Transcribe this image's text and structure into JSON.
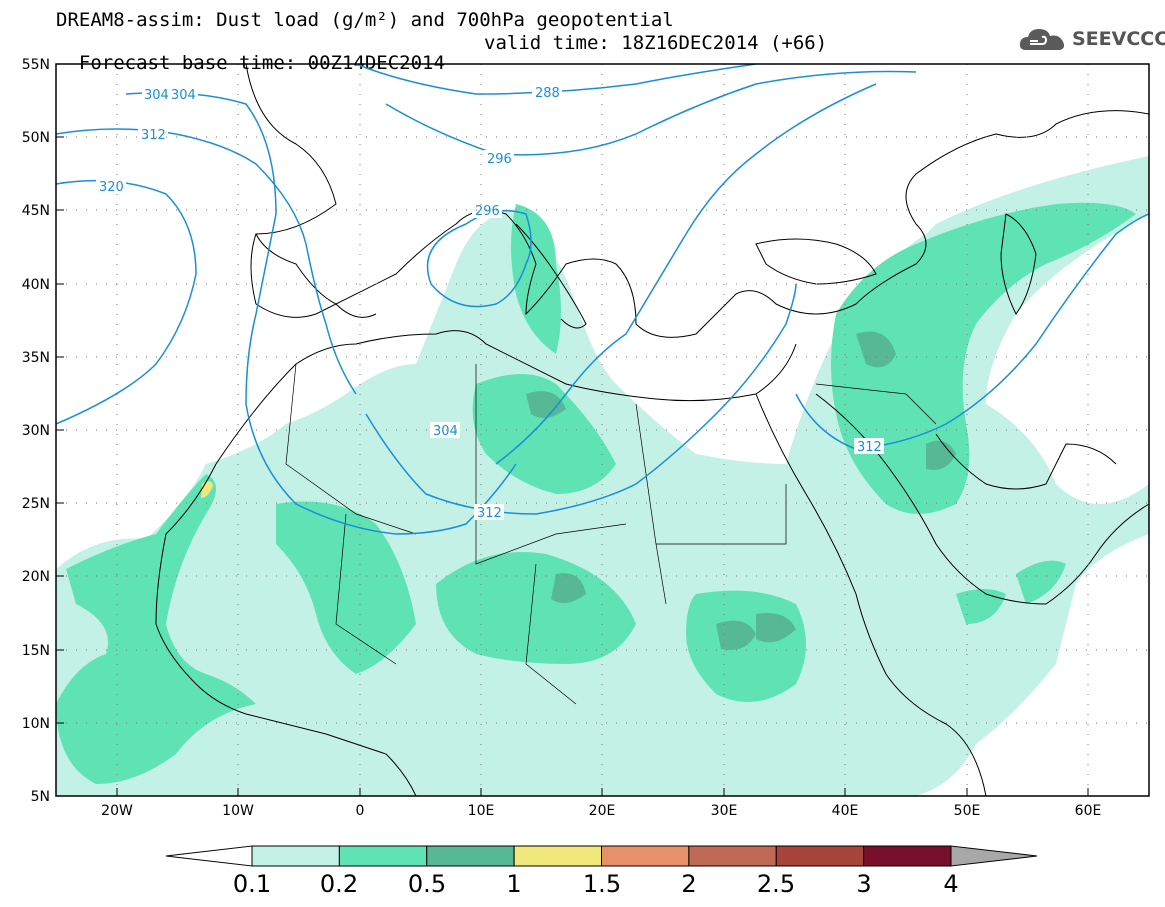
{
  "title": {
    "line1": "DREAM8-assim: Dust load (g/m²) and 700hPa geopotential",
    "base_time": "Forecast base time: 00Z14DEC2014",
    "valid_time": "valid time: 18Z16DEC2014 (+66)"
  },
  "logo": {
    "text": "SEEVCCC",
    "icon": "cloud-icon"
  },
  "axes": {
    "lat_labels": [
      "55N",
      "50N",
      "45N",
      "40N",
      "35N",
      "30N",
      "25N",
      "20N",
      "15N",
      "10N",
      "5N"
    ],
    "lon_labels": [
      "20W",
      "10W",
      "0",
      "10E",
      "20E",
      "30E",
      "40E",
      "50E",
      "60E"
    ]
  },
  "contour_labels": [
    "304",
    "304",
    "288",
    "312",
    "296",
    "320",
    "296",
    "304",
    "312",
    "312"
  ],
  "colorbar": {
    "labels": [
      "0.1",
      "0.2",
      "0.5",
      "1",
      "1.5",
      "2",
      "2.5",
      "3",
      "4"
    ],
    "colors": [
      "#c4f1e6",
      "#5fe3b5",
      "#57b895",
      "#f0e87a",
      "#e8906a",
      "#c06a56",
      "#a8443c",
      "#7a0f2c",
      "#8e6aa0",
      "#a8a8a8"
    ]
  },
  "colors": {
    "contour": "#1a8fd8",
    "coast": "#000000"
  }
}
